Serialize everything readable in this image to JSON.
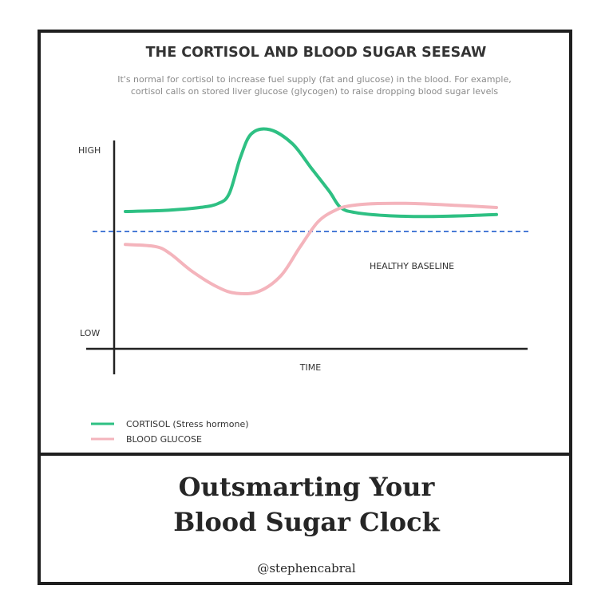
{
  "poster": {
    "book_title_line1": "Outsmarting Your",
    "book_title_line2": "Blood Sugar Clock",
    "handle": "@stephencabral",
    "border_color": "#1f1f1f"
  },
  "chart_data": {
    "type": "line",
    "title": "THE CORTISOL AND BLOOD SUGAR SEESAW",
    "subtitle_line1": "It's normal for cortisol to increase fuel supply (fat and glucose) in the blood. For example,",
    "subtitle_line2": "cortisol calls on stored liver glucose (glycogen) to raise dropping blood sugar levels",
    "xlabel": "TIME",
    "y_ticks": {
      "high": "HIGH",
      "low": "LOW"
    },
    "ylim": [
      0,
      100
    ],
    "xlim": [
      0,
      100
    ],
    "grid": false,
    "legend_position": "bottom-left",
    "baseline": {
      "label": "HEALTHY BASELINE",
      "value": 48,
      "color": "#4a7bd6",
      "style": "dashed"
    },
    "series": [
      {
        "name": "CORTISOL (Stress hormone)",
        "color": "#2ec083",
        "points": [
          [
            0,
            58
          ],
          [
            10,
            58.5
          ],
          [
            20,
            60
          ],
          [
            25,
            62
          ],
          [
            28,
            67
          ],
          [
            31,
            85
          ],
          [
            34,
            97
          ],
          [
            39,
            99
          ],
          [
            45,
            92
          ],
          [
            50,
            80
          ],
          [
            55,
            68
          ],
          [
            58,
            60
          ],
          [
            62,
            57.5
          ],
          [
            70,
            56
          ],
          [
            80,
            55.5
          ],
          [
            90,
            55.8
          ],
          [
            100,
            56.5
          ]
        ]
      },
      {
        "name": "BLOOD GLUCOSE",
        "color": "#f4b4bc",
        "points": [
          [
            0,
            41.5
          ],
          [
            8,
            40.5
          ],
          [
            12,
            37
          ],
          [
            18,
            28
          ],
          [
            25,
            20
          ],
          [
            30,
            17
          ],
          [
            36,
            18
          ],
          [
            42,
            26
          ],
          [
            47,
            40
          ],
          [
            52,
            53
          ],
          [
            57,
            59
          ],
          [
            61,
            61
          ],
          [
            68,
            62
          ],
          [
            78,
            62
          ],
          [
            90,
            61
          ],
          [
            100,
            60
          ]
        ]
      }
    ]
  }
}
